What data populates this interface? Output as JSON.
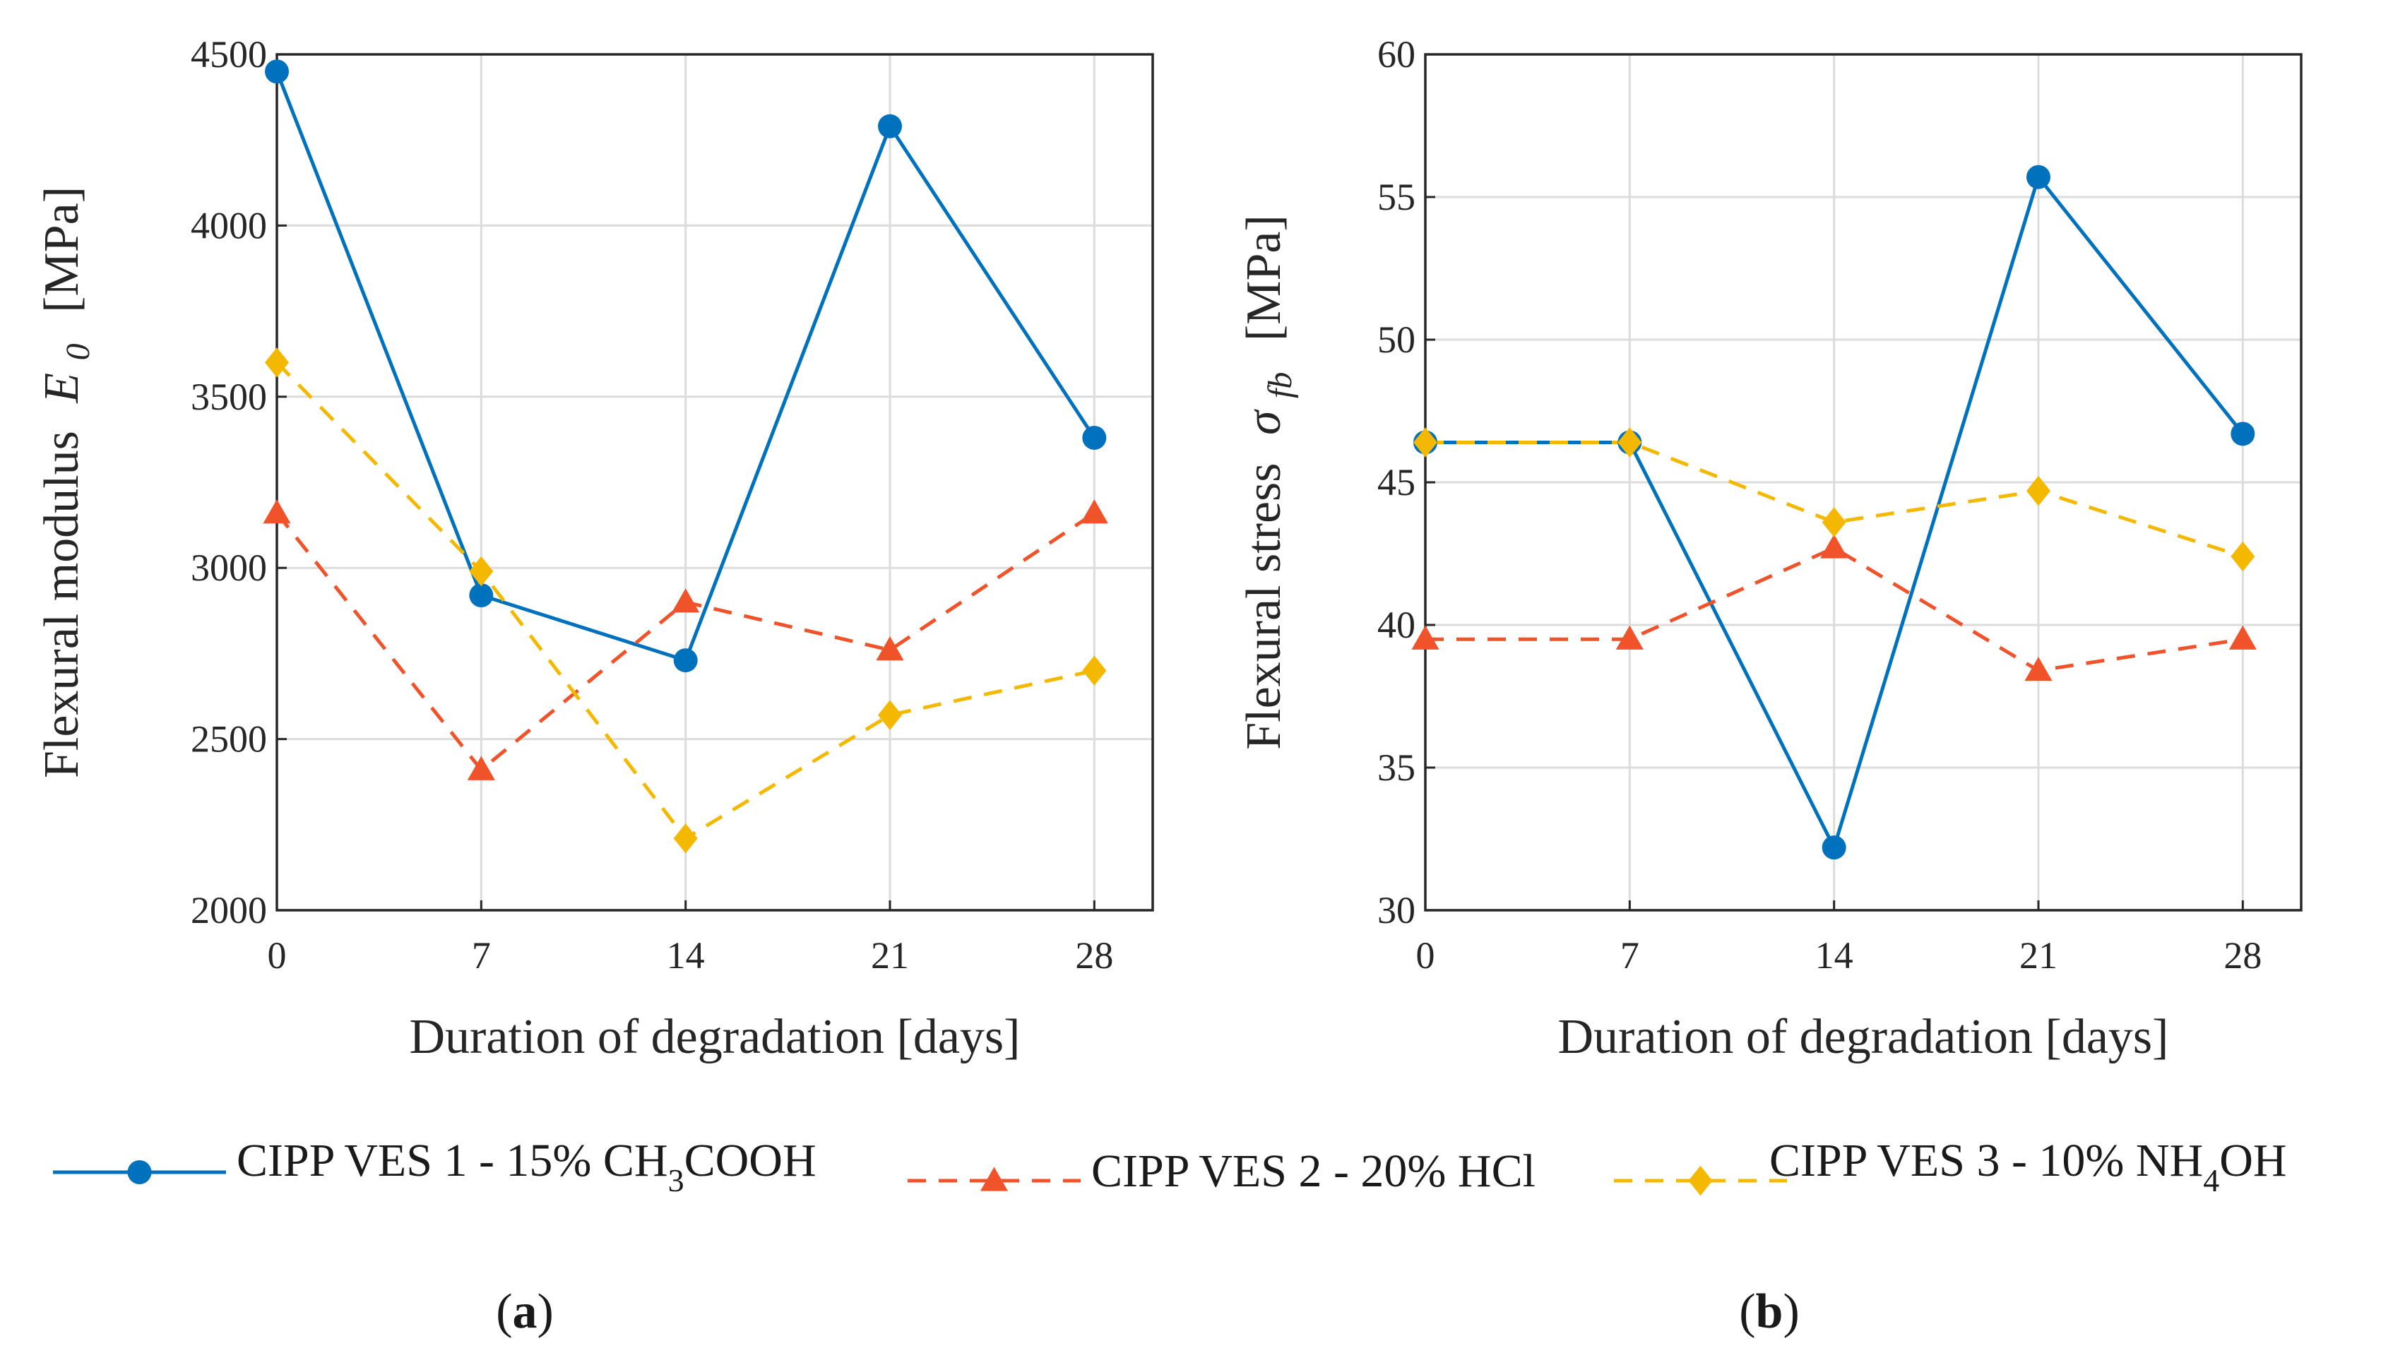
{
  "chart_data": [
    {
      "type": "line",
      "panel": "a",
      "x": [
        0,
        7,
        14,
        21,
        28
      ],
      "xticks": [
        "0",
        "7",
        "14",
        "21",
        "28"
      ],
      "xlim": [
        0,
        30
      ],
      "ylim": [
        2000,
        4500
      ],
      "yticks": [
        "2000",
        "2500",
        "3000",
        "3500",
        "4000",
        "4500"
      ],
      "xlabel": "Duration of degradation [days]",
      "ylabel_text": "Flexural modulus",
      "ylabel_symbol": "E",
      "ylabel_sub": "0",
      "ylabel_unit": "[MPa]",
      "series": [
        {
          "name": "CIPP VES 1 - 15% CH3COOH",
          "values": [
            4450,
            2920,
            2730,
            4290,
            3380
          ]
        },
        {
          "name": "CIPP VES 2 - 20% HCl",
          "values": [
            3160,
            2410,
            2900,
            2760,
            3160
          ]
        },
        {
          "name": "CIPP VES 3 - 10% NH4OH",
          "values": [
            3600,
            2990,
            2210,
            2570,
            2700
          ]
        }
      ]
    },
    {
      "type": "line",
      "panel": "b",
      "x": [
        0,
        7,
        14,
        21,
        28
      ],
      "xticks": [
        "0",
        "7",
        "14",
        "21",
        "28"
      ],
      "xlim": [
        0,
        30
      ],
      "ylim": [
        30,
        60
      ],
      "yticks": [
        "30",
        "35",
        "40",
        "45",
        "50",
        "55",
        "60"
      ],
      "xlabel": "Duration of degradation [days]",
      "ylabel_text": "Flexural stress",
      "ylabel_symbol": "σ",
      "ylabel_sub": "fb",
      "ylabel_unit": "[MPa]",
      "series": [
        {
          "name": "CIPP VES 1 - 15% CH3COOH",
          "values": [
            46.4,
            46.4,
            32.2,
            55.7,
            46.7
          ]
        },
        {
          "name": "CIPP VES 2 - 20% HCl",
          "values": [
            39.5,
            39.5,
            42.7,
            38.4,
            39.5
          ]
        },
        {
          "name": "CIPP VES 3 - 10% NH4OH",
          "values": [
            46.4,
            46.4,
            43.6,
            44.7,
            42.4
          ]
        }
      ]
    }
  ],
  "series_style": [
    {
      "color": "#0072BD",
      "marker": "circle",
      "dash": "none"
    },
    {
      "color": "#F0522A",
      "marker": "triangle",
      "dash": "dashed"
    },
    {
      "color": "#F5B800",
      "marker": "diamond",
      "dash": "dashed"
    }
  ],
  "legend": [
    {
      "prefix": "CIPP VES 1 - 15% CH",
      "sub": "3",
      "suffix": "COOH"
    },
    {
      "prefix": "CIPP VES 2 - 20% HCl",
      "sub": "",
      "suffix": ""
    },
    {
      "prefix": "CIPP VES 3 - 10% NH",
      "sub": "4",
      "suffix": "OH"
    }
  ],
  "captions": {
    "a": "a",
    "b": "b"
  }
}
